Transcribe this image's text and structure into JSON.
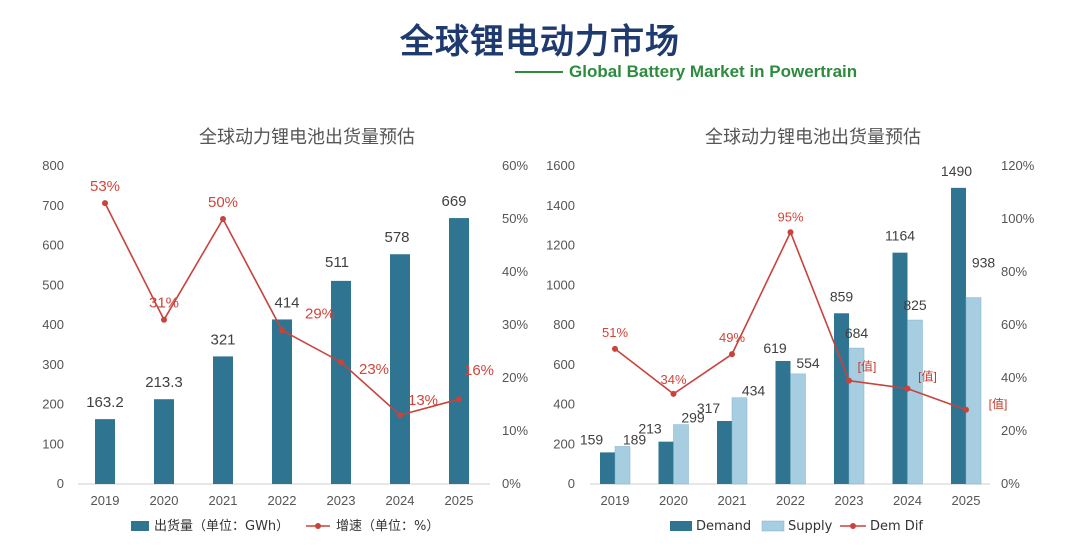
{
  "header": {
    "title": "全球锂电动力市场",
    "subtitle": "Global Battery Market in Powertrain"
  },
  "colors": {
    "title": "#1f3a6e",
    "subtitle": "#2e8b3e",
    "bar_dark": "#2f7591",
    "bar_light": "#a7cde0",
    "line": "#c8433b",
    "rate_label": "#d0453c",
    "value_label": "#404040",
    "placeholder": "#c0392b"
  },
  "chart_data": [
    {
      "type": "bar",
      "title": "全球动力锂电池出货量预估",
      "categories": [
        "2019",
        "2020",
        "2021",
        "2022",
        "2023",
        "2024",
        "2025"
      ],
      "left_axis": {
        "min": 0,
        "max": 800,
        "ticks": [
          "0",
          "100",
          "200",
          "300",
          "400",
          "500",
          "600",
          "700",
          "800"
        ]
      },
      "right_axis": {
        "min": 0,
        "max": 60,
        "ticks": [
          "0%",
          "10%",
          "20%",
          "30%",
          "40%",
          "50%",
          "60%"
        ]
      },
      "series": [
        {
          "name": "出货量（单位：GWh）",
          "kind": "bar",
          "values": [
            163.2,
            213.3,
            321,
            414,
            511,
            578,
            669
          ],
          "labels": [
            "163.2",
            "213.3",
            "321",
            "414",
            "511",
            "578",
            "669"
          ]
        },
        {
          "name": "增速（单位：%）",
          "kind": "line",
          "axis": "right",
          "values": [
            53,
            31,
            50,
            29,
            23,
            13,
            16
          ],
          "labels": [
            "53%",
            "31%",
            "50%",
            "29%",
            "23%",
            "13%",
            "16%"
          ]
        }
      ],
      "grid": false
    },
    {
      "type": "bar",
      "title": "全球动力锂电池出货量预估",
      "categories": [
        "2019",
        "2020",
        "2021",
        "2022",
        "2023",
        "2024",
        "2025"
      ],
      "left_axis": {
        "min": 0,
        "max": 1600,
        "ticks": [
          "0",
          "200",
          "400",
          "600",
          "800",
          "1000",
          "1200",
          "1400",
          "1600"
        ]
      },
      "right_axis": {
        "min": 0,
        "max": 120,
        "ticks": [
          "0%",
          "20%",
          "40%",
          "60%",
          "80%",
          "100%",
          "120%"
        ]
      },
      "series": [
        {
          "name": "Demand",
          "kind": "bar",
          "values": [
            159,
            213,
            317,
            619,
            859,
            1164,
            1490
          ],
          "labels": [
            "159",
            "213",
            "317",
            "619",
            "859",
            "1164",
            "1490"
          ]
        },
        {
          "name": "Supply",
          "kind": "bar",
          "values": [
            189,
            299,
            434,
            554,
            684,
            825,
            938
          ],
          "labels": [
            "189",
            "299",
            "434",
            "554",
            "684",
            "825",
            "938"
          ]
        },
        {
          "name": "Dem Dif",
          "kind": "line",
          "axis": "right",
          "values": [
            51,
            34,
            49,
            95,
            39,
            36,
            28
          ],
          "labels": [
            "51%",
            "34%",
            "49%",
            "95%",
            "[值]",
            "[值]",
            "[值]"
          ]
        }
      ],
      "grid": false
    }
  ]
}
